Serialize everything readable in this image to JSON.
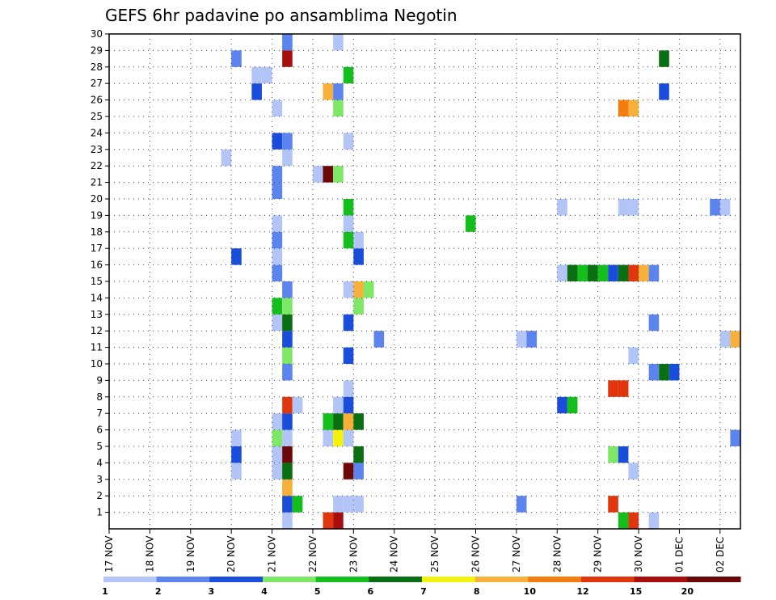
{
  "chart_data": {
    "type": "heatmap",
    "title": "GEFS 6hr padavine po ansamblima Negotin",
    "xlabel": "",
    "ylabel": "",
    "x_ticks": [
      "17 NOV",
      "18 NOV",
      "19 NOV",
      "20 NOV",
      "21 NOV",
      "22 NOV",
      "23 NOV",
      "24 NOV",
      "25 NOV",
      "26 NOV",
      "27 NOV",
      "28 NOV",
      "29 NOV",
      "30 NOV",
      "01 DEC",
      "02 DEC"
    ],
    "y_ticks": [
      "1",
      "2",
      "3",
      "4",
      "5",
      "6",
      "7",
      "8",
      "9",
      "10",
      "11",
      "12",
      "13",
      "14",
      "15",
      "16",
      "17",
      "18",
      "19",
      "20",
      "21",
      "22",
      "23",
      "24",
      "25",
      "26",
      "27",
      "28",
      "29",
      "30"
    ],
    "xlim": [
      0,
      15.5
    ],
    "ylim": [
      0,
      30
    ],
    "grid": true,
    "color_levels": [
      "1",
      "2",
      "3",
      "4",
      "5",
      "6",
      "7",
      "8",
      "10",
      "12",
      "15",
      "20"
    ],
    "colors": [
      "#b3c5f7",
      "#5b84ee",
      "#1a4ddb",
      "#7ee866",
      "#13be1d",
      "#0a6e12",
      "#f2f20d",
      "#f7b13b",
      "#f57d10",
      "#e0350d",
      "#a80e0e",
      "#6b0808"
    ],
    "cell_width_days": 0.25,
    "cells": [
      {
        "x": 4.25,
        "y": 0,
        "c": 0
      },
      {
        "x": 5.25,
        "y": 0,
        "c": 9
      },
      {
        "x": 5.5,
        "y": 0,
        "c": 10
      },
      {
        "x": 12.5,
        "y": 0,
        "c": 4
      },
      {
        "x": 12.75,
        "y": 0,
        "c": 9
      },
      {
        "x": 13.25,
        "y": 0,
        "c": 0
      },
      {
        "x": 4.25,
        "y": 1,
        "c": 2
      },
      {
        "x": 4.5,
        "y": 1,
        "c": 4
      },
      {
        "x": 5.5,
        "y": 1,
        "c": 0
      },
      {
        "x": 5.75,
        "y": 1,
        "c": 0
      },
      {
        "x": 6,
        "y": 1,
        "c": 0
      },
      {
        "x": 10,
        "y": 1,
        "c": 1
      },
      {
        "x": 12.25,
        "y": 1,
        "c": 9
      },
      {
        "x": 4.25,
        "y": 2,
        "c": 7
      },
      {
        "x": 3,
        "y": 3,
        "c": 0
      },
      {
        "x": 4,
        "y": 3,
        "c": 0
      },
      {
        "x": 4.25,
        "y": 3,
        "c": 5
      },
      {
        "x": 5.75,
        "y": 3,
        "c": 11
      },
      {
        "x": 6,
        "y": 3,
        "c": 1
      },
      {
        "x": 12.75,
        "y": 3,
        "c": 0
      },
      {
        "x": 3,
        "y": 4,
        "c": 2
      },
      {
        "x": 4,
        "y": 4,
        "c": 0
      },
      {
        "x": 4.25,
        "y": 4,
        "c": 11
      },
      {
        "x": 6,
        "y": 4,
        "c": 5
      },
      {
        "x": 12.25,
        "y": 4,
        "c": 3
      },
      {
        "x": 12.5,
        "y": 4,
        "c": 2
      },
      {
        "x": 3,
        "y": 5,
        "c": 0
      },
      {
        "x": 4,
        "y": 5,
        "c": 3
      },
      {
        "x": 4.25,
        "y": 5,
        "c": 0
      },
      {
        "x": 5.25,
        "y": 5,
        "c": 0
      },
      {
        "x": 5.5,
        "y": 5,
        "c": 6
      },
      {
        "x": 5.75,
        "y": 5,
        "c": 0
      },
      {
        "x": 15.25,
        "y": 5,
        "c": 1
      },
      {
        "x": 4,
        "y": 6,
        "c": 0
      },
      {
        "x": 4.25,
        "y": 6,
        "c": 2
      },
      {
        "x": 5.25,
        "y": 6,
        "c": 4
      },
      {
        "x": 5.5,
        "y": 6,
        "c": 5
      },
      {
        "x": 5.75,
        "y": 6,
        "c": 7
      },
      {
        "x": 6,
        "y": 6,
        "c": 5
      },
      {
        "x": 4.25,
        "y": 7,
        "c": 9
      },
      {
        "x": 4.5,
        "y": 7,
        "c": 0
      },
      {
        "x": 5.5,
        "y": 7,
        "c": 0
      },
      {
        "x": 5.75,
        "y": 7,
        "c": 2
      },
      {
        "x": 11,
        "y": 7,
        "c": 2
      },
      {
        "x": 11.25,
        "y": 7,
        "c": 4
      },
      {
        "x": 5.75,
        "y": 8,
        "c": 0
      },
      {
        "x": 12.25,
        "y": 8,
        "c": 9
      },
      {
        "x": 12.5,
        "y": 8,
        "c": 9
      },
      {
        "x": 4.25,
        "y": 9,
        "c": 1
      },
      {
        "x": 13.25,
        "y": 9,
        "c": 1
      },
      {
        "x": 13.5,
        "y": 9,
        "c": 5
      },
      {
        "x": 13.75,
        "y": 9,
        "c": 2
      },
      {
        "x": 4.25,
        "y": 10,
        "c": 3
      },
      {
        "x": 5.75,
        "y": 10,
        "c": 2
      },
      {
        "x": 12.75,
        "y": 10,
        "c": 0
      },
      {
        "x": 4.25,
        "y": 11,
        "c": 2
      },
      {
        "x": 6.5,
        "y": 11,
        "c": 1
      },
      {
        "x": 10,
        "y": 11,
        "c": 0
      },
      {
        "x": 10.25,
        "y": 11,
        "c": 1
      },
      {
        "x": 15,
        "y": 11,
        "c": 0
      },
      {
        "x": 15.25,
        "y": 11,
        "c": 7
      },
      {
        "x": 4,
        "y": 12,
        "c": 0
      },
      {
        "x": 4.25,
        "y": 12,
        "c": 5
      },
      {
        "x": 5.75,
        "y": 12,
        "c": 2
      },
      {
        "x": 13.25,
        "y": 12,
        "c": 1
      },
      {
        "x": 4,
        "y": 13,
        "c": 4
      },
      {
        "x": 4.25,
        "y": 13,
        "c": 3
      },
      {
        "x": 6,
        "y": 13,
        "c": 3
      },
      {
        "x": 4.25,
        "y": 14,
        "c": 1
      },
      {
        "x": 5.75,
        "y": 14,
        "c": 0
      },
      {
        "x": 6,
        "y": 14,
        "c": 7
      },
      {
        "x": 6.25,
        "y": 14,
        "c": 3
      },
      {
        "x": 4,
        "y": 15,
        "c": 1
      },
      {
        "x": 11,
        "y": 15,
        "c": 0
      },
      {
        "x": 11.25,
        "y": 15,
        "c": 5
      },
      {
        "x": 11.5,
        "y": 15,
        "c": 4
      },
      {
        "x": 11.75,
        "y": 15,
        "c": 5
      },
      {
        "x": 12,
        "y": 15,
        "c": 4
      },
      {
        "x": 12.25,
        "y": 15,
        "c": 2
      },
      {
        "x": 12.5,
        "y": 15,
        "c": 5
      },
      {
        "x": 12.75,
        "y": 15,
        "c": 9
      },
      {
        "x": 13,
        "y": 15,
        "c": 7
      },
      {
        "x": 13.25,
        "y": 15,
        "c": 1
      },
      {
        "x": 3,
        "y": 16,
        "c": 2
      },
      {
        "x": 4,
        "y": 16,
        "c": 0
      },
      {
        "x": 6,
        "y": 16,
        "c": 2
      },
      {
        "x": 4,
        "y": 17,
        "c": 1
      },
      {
        "x": 5.75,
        "y": 17,
        "c": 4
      },
      {
        "x": 6,
        "y": 17,
        "c": 0
      },
      {
        "x": 4,
        "y": 18,
        "c": 0
      },
      {
        "x": 5.75,
        "y": 18,
        "c": 0
      },
      {
        "x": 8.75,
        "y": 18,
        "c": 4
      },
      {
        "x": 5.75,
        "y": 19,
        "c": 4
      },
      {
        "x": 11,
        "y": 19,
        "c": 0
      },
      {
        "x": 12.5,
        "y": 19,
        "c": 0
      },
      {
        "x": 12.75,
        "y": 19,
        "c": 0
      },
      {
        "x": 14.75,
        "y": 19,
        "c": 1
      },
      {
        "x": 15,
        "y": 19,
        "c": 0
      },
      {
        "x": 15.5,
        "y": 19,
        "c": 0
      },
      {
        "x": 4,
        "y": 20,
        "c": 1
      },
      {
        "x": 4,
        "y": 21,
        "c": 1
      },
      {
        "x": 5,
        "y": 21,
        "c": 0
      },
      {
        "x": 5.25,
        "y": 21,
        "c": 11
      },
      {
        "x": 5.5,
        "y": 21,
        "c": 3
      },
      {
        "x": 2.75,
        "y": 22,
        "c": 0
      },
      {
        "x": 4.25,
        "y": 22,
        "c": 0
      },
      {
        "x": 4,
        "y": 23,
        "c": 2
      },
      {
        "x": 4.25,
        "y": 23,
        "c": 1
      },
      {
        "x": 5.75,
        "y": 23,
        "c": 0
      },
      {
        "x": 4,
        "y": 25,
        "c": 0
      },
      {
        "x": 5.5,
        "y": 25,
        "c": 3
      },
      {
        "x": 12.5,
        "y": 25,
        "c": 8
      },
      {
        "x": 12.75,
        "y": 25,
        "c": 7
      },
      {
        "x": 3.5,
        "y": 26,
        "c": 2
      },
      {
        "x": 5.25,
        "y": 26,
        "c": 7
      },
      {
        "x": 5.5,
        "y": 26,
        "c": 1
      },
      {
        "x": 13.5,
        "y": 26,
        "c": 2
      },
      {
        "x": 3.5,
        "y": 27,
        "c": 0
      },
      {
        "x": 3.75,
        "y": 27,
        "c": 0
      },
      {
        "x": 5.75,
        "y": 27,
        "c": 4
      },
      {
        "x": 3,
        "y": 28,
        "c": 1
      },
      {
        "x": 4.25,
        "y": 28,
        "c": 10
      },
      {
        "x": 13.5,
        "y": 28,
        "c": 5
      },
      {
        "x": 4.25,
        "y": 29,
        "c": 1
      },
      {
        "x": 5.5,
        "y": 29,
        "c": 0
      }
    ]
  }
}
